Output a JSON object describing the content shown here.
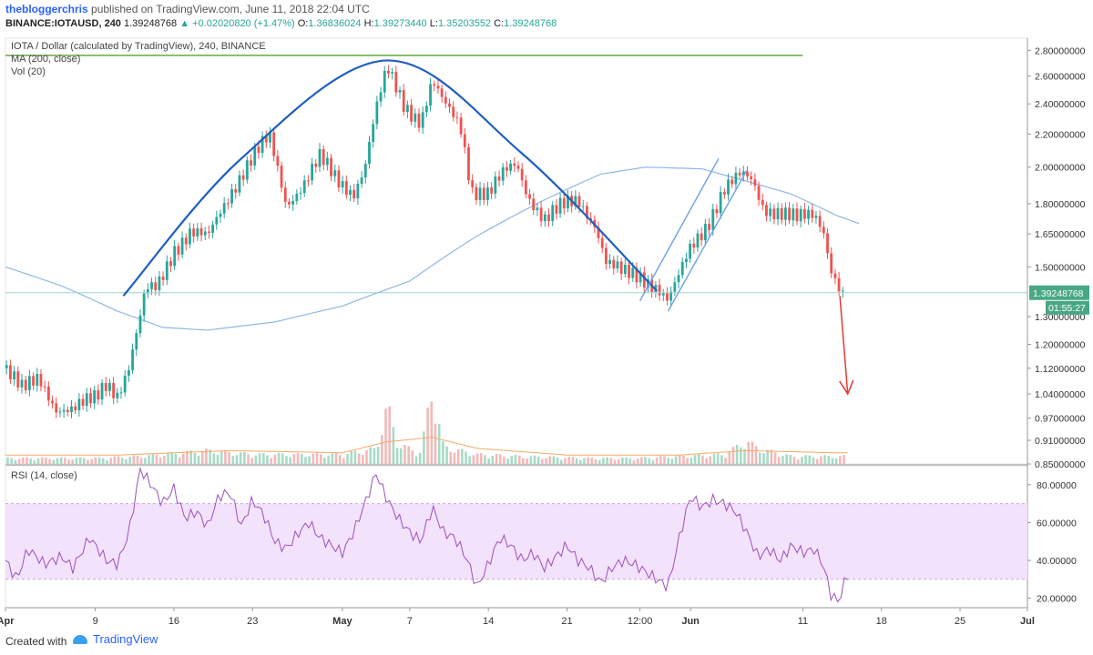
{
  "header": {
    "author": "thebloggerchris",
    "published": "published on TradingView.com, June 11, 2018 22:04 UTC",
    "symbol": "BINANCE:IOTAUSD, 240",
    "last": "1.39248768",
    "change": "+0.02020820 (+1.47%)",
    "o_label": "O:",
    "o": "1.36836024",
    "h_label": "H:",
    "h": "1.39273440",
    "l_label": "L:",
    "l": "1.35203552",
    "c_label": "C:",
    "c": "1.39248768"
  },
  "footer": {
    "created": "Created with",
    "brand": "TradingView"
  },
  "colors": {
    "up": "#26a69a",
    "down": "#ef5350",
    "ma": "#8fb8e6",
    "arc": "#1f5fbf",
    "channel": "#6f9fe8",
    "resistance": "#66a83c",
    "arrow": "#e53935",
    "rsi_line": "#9c4fbf",
    "rsi_band": "#f3e2fb",
    "price_label": "#49a884"
  },
  "chart_data": {
    "type": "candlestick",
    "timeframe": "240",
    "legend": [
      "IOTA / Dollar (calculated by TradingView), 240, BINANCE",
      "MA (200, close)",
      "Vol (20)"
    ],
    "price_axis": {
      "scale": "log",
      "ticks": [
        "2.80000000",
        "2.60000000",
        "2.40000000",
        "2.20000000",
        "2.00000000",
        "1.80000000",
        "1.65000000",
        "1.50000000",
        "1.30000000",
        "1.20000000",
        "1.12000000",
        "1.04000000",
        "0.97000000",
        "0.91000000",
        "0.85000000"
      ],
      "tick_values": [
        2.8,
        2.6,
        2.4,
        2.2,
        2.0,
        1.8,
        1.65,
        1.5,
        1.3,
        1.2,
        1.12,
        1.04,
        0.97,
        0.91,
        0.85
      ],
      "range": [
        0.85,
        2.9
      ]
    },
    "x_axis": {
      "labels": [
        "Apr",
        "9",
        "16",
        "23",
        "May",
        "7",
        "14",
        "21",
        "12:00",
        "Jun",
        "11",
        "18",
        "25",
        "Jul"
      ],
      "label_days": [
        0,
        8,
        15,
        22,
        30,
        36,
        43,
        50,
        56.5,
        61,
        71,
        78,
        85,
        91
      ],
      "range_days": [
        0,
        91
      ]
    },
    "last_price_label": "1.39248768",
    "countdown_label": "01:55:27",
    "price_path": [
      [
        0,
        1.12
      ],
      [
        1.5,
        1.05
      ],
      [
        3,
        1.09
      ],
      [
        4.5,
        1.0
      ],
      [
        6,
        0.99
      ],
      [
        8,
        1.03
      ],
      [
        9,
        1.08
      ],
      [
        10,
        1.04
      ],
      [
        11,
        1.12
      ],
      [
        11.8,
        1.25
      ],
      [
        12.5,
        1.4
      ],
      [
        13.5,
        1.42
      ],
      [
        15,
        1.58
      ],
      [
        16.5,
        1.65
      ],
      [
        18,
        1.63
      ],
      [
        19,
        1.75
      ],
      [
        20,
        1.86
      ],
      [
        22,
        2.05
      ],
      [
        23.5,
        2.18
      ],
      [
        25,
        1.8
      ],
      [
        26.5,
        1.9
      ],
      [
        28,
        2.05
      ],
      [
        29.5,
        1.93
      ],
      [
        31,
        1.86
      ],
      [
        32,
        2.0
      ],
      [
        33,
        2.35
      ],
      [
        34,
        2.65
      ],
      [
        35.5,
        2.4
      ],
      [
        37,
        2.28
      ],
      [
        38,
        2.55
      ],
      [
        39,
        2.4
      ],
      [
        40.5,
        2.26
      ],
      [
        41.5,
        1.88
      ],
      [
        43,
        1.85
      ],
      [
        44.5,
        1.97
      ],
      [
        45.5,
        2.02
      ],
      [
        46.5,
        1.85
      ],
      [
        48,
        1.72
      ],
      [
        49.5,
        1.78
      ],
      [
        51,
        1.82
      ],
      [
        52.5,
        1.7
      ],
      [
        53.5,
        1.52
      ],
      [
        55,
        1.47
      ],
      [
        56.5,
        1.46
      ],
      [
        58,
        1.42
      ],
      [
        59,
        1.36
      ],
      [
        60,
        1.46
      ],
      [
        61,
        1.58
      ],
      [
        62.5,
        1.7
      ],
      [
        64,
        1.88
      ],
      [
        65.5,
        1.95
      ],
      [
        66.5,
        1.92
      ],
      [
        67.5,
        1.78
      ],
      [
        69,
        1.76
      ],
      [
        70.5,
        1.72
      ],
      [
        72,
        1.74
      ],
      [
        72.8,
        1.68
      ],
      [
        73.5,
        1.5
      ],
      [
        74.5,
        1.39
      ]
    ],
    "ma200_path": [
      [
        0,
        1.5
      ],
      [
        5,
        1.42
      ],
      [
        10,
        1.32
      ],
      [
        14,
        1.26
      ],
      [
        18,
        1.25
      ],
      [
        24,
        1.28
      ],
      [
        30,
        1.34
      ],
      [
        36,
        1.44
      ],
      [
        42,
        1.64
      ],
      [
        48,
        1.82
      ],
      [
        53,
        1.96
      ],
      [
        57,
        2.0
      ],
      [
        62,
        1.99
      ],
      [
        66,
        1.92
      ],
      [
        70,
        1.85
      ],
      [
        74,
        1.74
      ],
      [
        76,
        1.7
      ]
    ],
    "volume": [
      [
        0,
        3
      ],
      [
        4,
        3
      ],
      [
        8,
        3
      ],
      [
        12,
        4
      ],
      [
        14,
        5
      ],
      [
        16,
        6
      ],
      [
        18,
        7
      ],
      [
        20,
        6
      ],
      [
        22,
        5
      ],
      [
        26,
        5
      ],
      [
        30,
        5
      ],
      [
        33,
        8
      ],
      [
        34,
        30
      ],
      [
        35,
        10
      ],
      [
        37,
        6
      ],
      [
        38,
        40
      ],
      [
        39,
        9
      ],
      [
        42,
        5
      ],
      [
        46,
        4
      ],
      [
        52,
        3
      ],
      [
        56,
        3
      ],
      [
        60,
        4
      ],
      [
        64,
        5
      ],
      [
        66,
        12
      ],
      [
        67,
        8
      ],
      [
        70,
        4
      ],
      [
        74,
        4
      ]
    ],
    "volume_ma": [
      [
        0,
        4
      ],
      [
        10,
        4
      ],
      [
        20,
        6
      ],
      [
        30,
        5
      ],
      [
        34,
        10
      ],
      [
        38,
        12
      ],
      [
        42,
        7
      ],
      [
        50,
        4
      ],
      [
        60,
        4
      ],
      [
        66,
        6
      ],
      [
        74,
        5
      ]
    ],
    "rsi": {
      "title": "RSI (14, close)",
      "ticks": [
        "80.00000",
        "60.00000",
        "40.00000",
        "20.00000"
      ],
      "tick_values": [
        80,
        60,
        40,
        20
      ],
      "band": [
        30,
        70
      ],
      "range": [
        15,
        90
      ],
      "values": [
        [
          0,
          40
        ],
        [
          1,
          30
        ],
        [
          2,
          46
        ],
        [
          3.5,
          38
        ],
        [
          5,
          42
        ],
        [
          6,
          36
        ],
        [
          7.5,
          52
        ],
        [
          9,
          40
        ],
        [
          10,
          38
        ],
        [
          11,
          55
        ],
        [
          12,
          88
        ],
        [
          13,
          80
        ],
        [
          14,
          70
        ],
        [
          15,
          78
        ],
        [
          16,
          62
        ],
        [
          17,
          66
        ],
        [
          18,
          58
        ],
        [
          19,
          74
        ],
        [
          20,
          76
        ],
        [
          21,
          58
        ],
        [
          22,
          72
        ],
        [
          23,
          64
        ],
        [
          24,
          50
        ],
        [
          25,
          46
        ],
        [
          26,
          54
        ],
        [
          27,
          60
        ],
        [
          28,
          52
        ],
        [
          29,
          48
        ],
        [
          30,
          44
        ],
        [
          31,
          55
        ],
        [
          32,
          70
        ],
        [
          33,
          86
        ],
        [
          34,
          72
        ],
        [
          35,
          62
        ],
        [
          36,
          55
        ],
        [
          37,
          50
        ],
        [
          38,
          68
        ],
        [
          39,
          55
        ],
        [
          40,
          52
        ],
        [
          41,
          42
        ],
        [
          42,
          26
        ],
        [
          43,
          38
        ],
        [
          44,
          52
        ],
        [
          45,
          48
        ],
        [
          46,
          40
        ],
        [
          47,
          44
        ],
        [
          48,
          36
        ],
        [
          49,
          42
        ],
        [
          50,
          48
        ],
        [
          51,
          40
        ],
        [
          52,
          36
        ],
        [
          53,
          28
        ],
        [
          54,
          36
        ],
        [
          55,
          40
        ],
        [
          56,
          38
        ],
        [
          57,
          34
        ],
        [
          58,
          30
        ],
        [
          59,
          26
        ],
        [
          60,
          52
        ],
        [
          61,
          74
        ],
        [
          62,
          68
        ],
        [
          63,
          72
        ],
        [
          64,
          70
        ],
        [
          65,
          66
        ],
        [
          66,
          55
        ],
        [
          67,
          42
        ],
        [
          68,
          46
        ],
        [
          69,
          40
        ],
        [
          70,
          48
        ],
        [
          71,
          44
        ],
        [
          72,
          46
        ],
        [
          72.8,
          38
        ],
        [
          73.5,
          22
        ],
        [
          74.2,
          18
        ],
        [
          74.8,
          30
        ],
        [
          75.2,
          35
        ]
      ]
    },
    "drawings": {
      "arc": [
        [
          10.5,
          1.38
        ],
        [
          21,
          2.05
        ],
        [
          34,
          2.72
        ],
        [
          46,
          2.08
        ],
        [
          58,
          1.4
        ]
      ],
      "resistance": [
        [
          0,
          2.76
        ],
        [
          71,
          2.76
        ]
      ],
      "channel_lower": [
        [
          59,
          1.32
        ],
        [
          66,
          1.98
        ]
      ],
      "channel_upper": [
        [
          56.5,
          1.36
        ],
        [
          63.5,
          2.05
        ]
      ],
      "arrow": [
        [
          74.3,
          1.38
        ],
        [
          75,
          1.04
        ]
      ]
    }
  }
}
